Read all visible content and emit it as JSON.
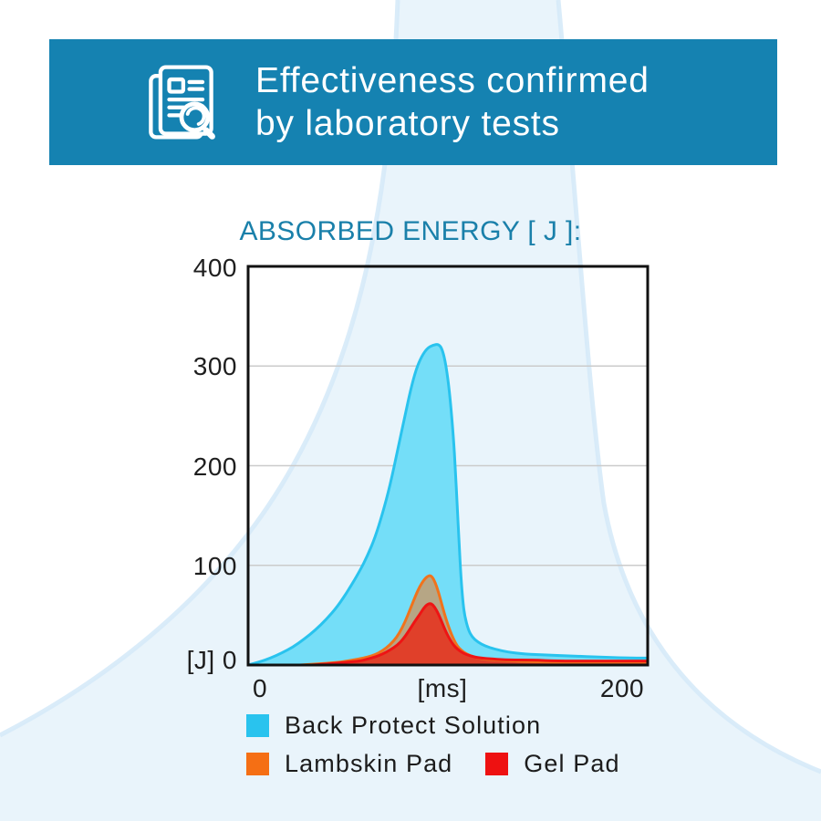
{
  "header": {
    "icon": "document-search-icon",
    "title_line1": "Effectiveness confirmed",
    "title_line2": "by laboratory tests",
    "background_color": "#1582B1",
    "text_color": "#FFFFFF"
  },
  "chart": {
    "title": "ABSORBED ENERGY [ J ]:",
    "title_color": "#1A80AA",
    "y_axis": {
      "ticks": [
        "400",
        "300",
        "200",
        "100"
      ],
      "zero_label": "[J] 0"
    },
    "x_axis": {
      "tick_left": "0",
      "unit_label": "[ms]",
      "tick_right": "200"
    }
  },
  "chart_data": {
    "type": "area",
    "title": "ABSORBED ENERGY [ J ]:",
    "xlabel": "[ms]",
    "ylabel": "[J]",
    "xlim": [
      0,
      214
    ],
    "ylim": [
      0,
      400
    ],
    "x_ticks": [
      0,
      200
    ],
    "y_ticks": [
      0,
      100,
      200,
      300,
      400
    ],
    "y_gridlines": [
      100,
      200,
      300
    ],
    "grid": true,
    "grid_color": "#CBCBCB",
    "axis_color": "#111111",
    "legend_position": "bottom",
    "series": [
      {
        "name": "Back Protect Solution",
        "color": "#29C3EE",
        "fill": "#74DEF8",
        "fill_opacity": 1,
        "peak_ms": 102,
        "peak_J": 322,
        "points": [
          [
            0,
            0
          ],
          [
            6,
            3
          ],
          [
            12,
            7
          ],
          [
            18,
            12
          ],
          [
            24,
            18
          ],
          [
            30,
            26
          ],
          [
            36,
            35
          ],
          [
            42,
            46
          ],
          [
            48,
            59
          ],
          [
            54,
            76
          ],
          [
            60,
            95
          ],
          [
            64,
            110
          ],
          [
            68,
            128
          ],
          [
            72,
            152
          ],
          [
            76,
            180
          ],
          [
            80,
            215
          ],
          [
            84,
            250
          ],
          [
            87,
            276
          ],
          [
            90,
            297
          ],
          [
            93,
            310
          ],
          [
            96,
            318
          ],
          [
            99,
            321
          ],
          [
            102,
            322
          ],
          [
            104,
            317
          ],
          [
            106,
            301
          ],
          [
            108,
            272
          ],
          [
            110,
            228
          ],
          [
            111,
            196
          ],
          [
            112,
            160
          ],
          [
            113,
            122
          ],
          [
            114,
            88
          ],
          [
            115,
            64
          ],
          [
            116,
            49
          ],
          [
            118,
            35
          ],
          [
            120,
            28
          ],
          [
            123,
            23
          ],
          [
            127,
            19
          ],
          [
            132,
            16
          ],
          [
            139,
            13
          ],
          [
            148,
            11
          ],
          [
            160,
            10
          ],
          [
            174,
            9
          ],
          [
            188,
            8
          ],
          [
            202,
            7
          ],
          [
            214,
            7
          ]
        ]
      },
      {
        "name": "Lambskin Pad",
        "color": "#F0731C",
        "fill": "#F4731A",
        "fill_opacity": 0.52,
        "peak_ms": 98,
        "peak_J": 90,
        "points": [
          [
            28,
            0
          ],
          [
            36,
            1
          ],
          [
            44,
            2
          ],
          [
            50,
            3
          ],
          [
            56,
            5
          ],
          [
            62,
            7
          ],
          [
            66,
            9
          ],
          [
            70,
            12
          ],
          [
            74,
            17
          ],
          [
            78,
            24
          ],
          [
            81,
            32
          ],
          [
            84,
            43
          ],
          [
            87,
            57
          ],
          [
            90,
            71
          ],
          [
            92,
            79
          ],
          [
            94,
            85
          ],
          [
            96,
            89
          ],
          [
            98,
            90
          ],
          [
            100,
            84
          ],
          [
            102,
            73
          ],
          [
            104,
            59
          ],
          [
            106,
            46
          ],
          [
            108,
            35
          ],
          [
            110,
            26
          ],
          [
            112,
            19
          ],
          [
            114,
            15
          ],
          [
            117,
            11
          ],
          [
            121,
            8
          ],
          [
            126,
            6
          ],
          [
            133,
            5
          ],
          [
            143,
            4
          ],
          [
            156,
            3
          ],
          [
            172,
            3
          ],
          [
            190,
            3
          ],
          [
            214,
            3
          ]
        ]
      },
      {
        "name": "Gel Pad",
        "color": "#EE1414",
        "fill": "#E92A16",
        "fill_opacity": 0.82,
        "peak_ms": 98,
        "peak_J": 62,
        "points": [
          [
            34,
            0
          ],
          [
            42,
            1
          ],
          [
            48,
            2
          ],
          [
            54,
            3
          ],
          [
            60,
            4
          ],
          [
            64,
            6
          ],
          [
            68,
            8
          ],
          [
            72,
            11
          ],
          [
            76,
            15
          ],
          [
            80,
            20
          ],
          [
            83,
            26
          ],
          [
            86,
            34
          ],
          [
            89,
            43
          ],
          [
            92,
            51
          ],
          [
            94,
            57
          ],
          [
            96,
            61
          ],
          [
            98,
            62
          ],
          [
            100,
            58
          ],
          [
            102,
            51
          ],
          [
            104,
            42
          ],
          [
            106,
            33
          ],
          [
            108,
            26
          ],
          [
            110,
            20
          ],
          [
            112,
            16
          ],
          [
            115,
            12
          ],
          [
            119,
            9
          ],
          [
            124,
            7
          ],
          [
            131,
            6
          ],
          [
            140,
            5
          ],
          [
            152,
            5
          ],
          [
            166,
            4
          ],
          [
            182,
            4
          ],
          [
            198,
            4
          ],
          [
            214,
            4
          ]
        ]
      }
    ]
  },
  "legend": {
    "items": [
      {
        "label": "Back Protect Solution",
        "color": "#29C3EE"
      },
      {
        "label": "Lambskin Pad",
        "color": "#F56F14"
      },
      {
        "label": "Gel Pad",
        "color": "#EE1111"
      }
    ]
  }
}
